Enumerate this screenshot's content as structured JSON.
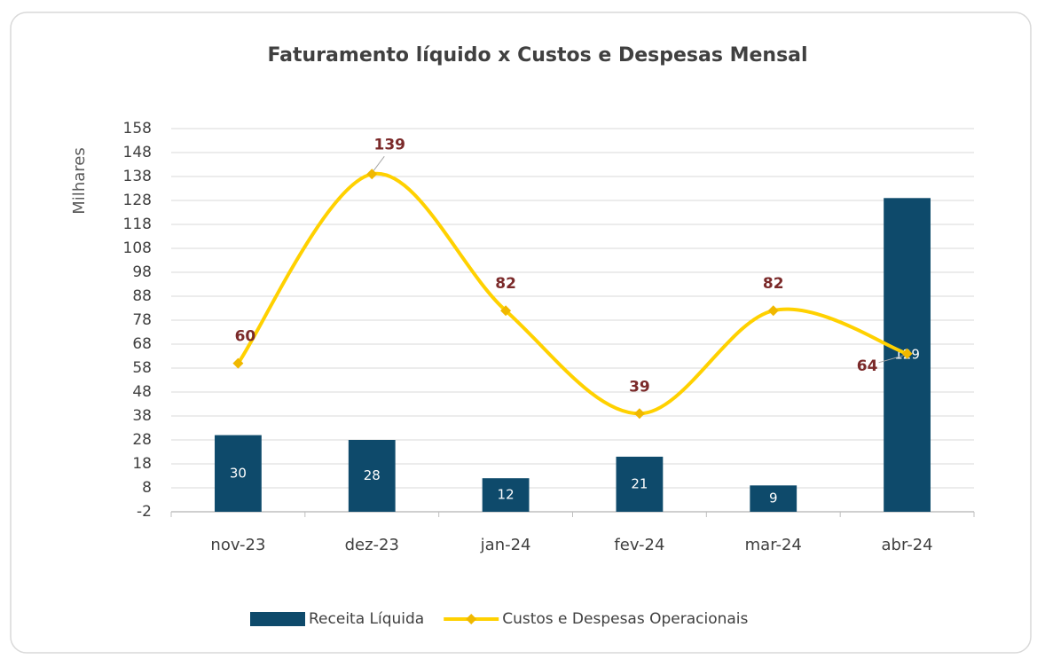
{
  "chart_data": {
    "type": "bar_line",
    "title": "Faturamento líquido x Custos e Despesas Mensal",
    "y_label": "Milhares",
    "categories": [
      "nov-23",
      "dez-23",
      "jan-24",
      "fev-24",
      "mar-24",
      "abr-24"
    ],
    "series": [
      {
        "name": "Receita Líquida",
        "type": "bar",
        "color": "#0e4a6b",
        "values": [
          30,
          28,
          12,
          21,
          9,
          129
        ]
      },
      {
        "name": "Custos e Despesas Operacionais",
        "type": "line",
        "smooth": true,
        "color": "#ffd100",
        "values": [
          60,
          139,
          82,
          39,
          82,
          64
        ]
      }
    ],
    "ylim": [
      -2,
      158
    ],
    "yticks": [
      -2,
      8,
      18,
      28,
      38,
      48,
      58,
      68,
      78,
      88,
      98,
      108,
      118,
      128,
      138,
      148,
      158
    ],
    "grid": true,
    "legend": "bottom"
  }
}
